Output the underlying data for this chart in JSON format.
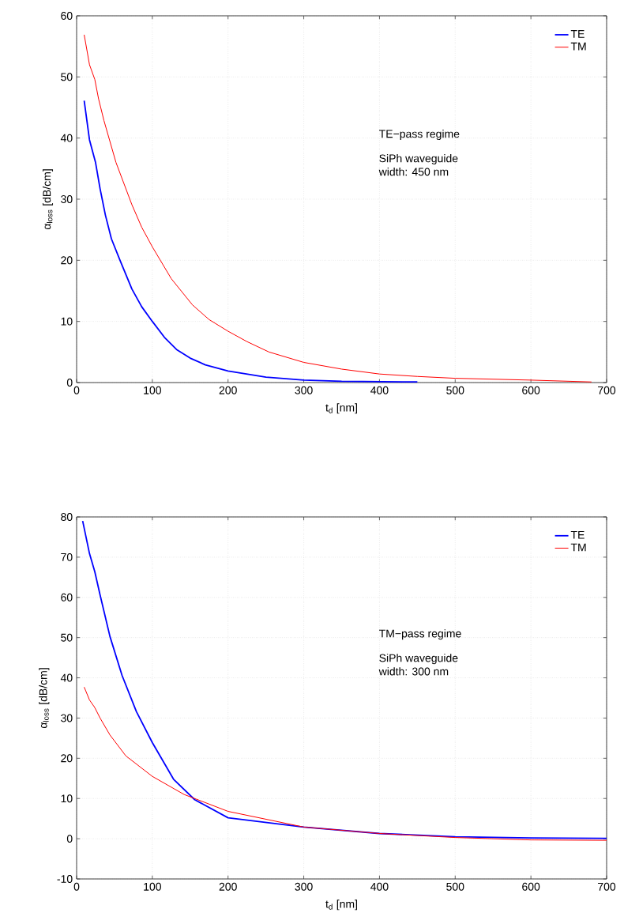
{
  "chart_data": [
    {
      "type": "line",
      "xlabel": "t$_{d}$ [nm]",
      "ylabel": "α$_{loss}$ [dB/cm]",
      "annotations": [
        "TE−pass regime",
        "SiPh waveguide",
        "width: 450 nm"
      ],
      "xlim": [
        0,
        700
      ],
      "ylim": [
        0,
        60
      ],
      "xticks": [
        0,
        100,
        200,
        300,
        400,
        500,
        600,
        700
      ],
      "yticks": [
        0,
        10,
        20,
        30,
        40,
        50,
        60
      ],
      "grid": true,
      "legend": "top right",
      "marker": "none",
      "line_style": "solid",
      "series": [
        {
          "name": "TE",
          "color": "#0000ff",
          "x": [
            10,
            17,
            25,
            31,
            38,
            46,
            57,
            73,
            86,
            100,
            116,
            132,
            150,
            170,
            200,
            250,
            300,
            350,
            450
          ],
          "values": [
            46.1,
            39.7,
            36.0,
            31.7,
            27.4,
            23.5,
            20.1,
            15.3,
            12.4,
            10.0,
            7.4,
            5.4,
            4.0,
            2.9,
            1.9,
            0.9,
            0.4,
            0.2,
            0.1
          ]
        },
        {
          "name": "TM",
          "color": "#ff0000",
          "x": [
            10,
            17,
            24,
            29,
            36,
            52,
            73,
            86,
            100,
            125,
            153,
            175,
            200,
            225,
            254,
            300,
            350,
            400,
            450,
            500,
            600,
            680
          ],
          "values": [
            56.9,
            52.0,
            49.6,
            46.4,
            42.9,
            36.0,
            29.1,
            25.4,
            22.2,
            17.0,
            12.7,
            10.3,
            8.4,
            6.7,
            5.0,
            3.3,
            2.2,
            1.4,
            1.0,
            0.7,
            0.4,
            0.1
          ]
        }
      ]
    },
    {
      "type": "line",
      "xlabel": "t$_{d}$ [nm]",
      "ylabel": "α$_{loss}$ [dB/cm]",
      "annotations": [
        "TM−pass regime",
        "SiPh waveguide",
        "width: 300 nm"
      ],
      "xlim": [
        0,
        700
      ],
      "ylim": [
        -10,
        80
      ],
      "xticks": [
        0,
        100,
        200,
        300,
        400,
        500,
        600,
        700
      ],
      "yticks": [
        -10,
        0,
        10,
        20,
        30,
        40,
        50,
        60,
        70,
        80
      ],
      "grid": true,
      "legend": "top right",
      "marker": "none",
      "line_style": "solid",
      "series": [
        {
          "name": "TE",
          "color": "#0000ff",
          "x": [
            8,
            17,
            24,
            31,
            44,
            60,
            79,
            100,
            128,
            156,
            200,
            300,
            400,
            500,
            600,
            700
          ],
          "values": [
            79,
            70.9,
            66.4,
            60.6,
            50.3,
            40.6,
            31.6,
            23.9,
            14.8,
            9.7,
            5.2,
            2.9,
            1.3,
            0.5,
            0.2,
            0.1
          ]
        },
        {
          "name": "TM",
          "color": "#ff0000",
          "x": [
            10,
            17,
            24,
            31,
            44,
            65,
            100,
            142,
            200,
            300,
            400,
            500,
            600,
            700
          ],
          "values": [
            37.7,
            34.5,
            32.6,
            30.0,
            25.8,
            20.6,
            15.5,
            11.0,
            6.8,
            2.9,
            1.3,
            0.3,
            -0.3,
            -0.4
          ]
        }
      ]
    }
  ]
}
